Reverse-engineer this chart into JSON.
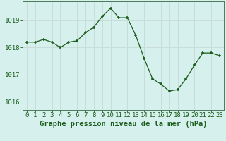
{
  "x": [
    0,
    1,
    2,
    3,
    4,
    5,
    6,
    7,
    8,
    9,
    10,
    11,
    12,
    13,
    14,
    15,
    16,
    17,
    18,
    19,
    20,
    21,
    22,
    23
  ],
  "y": [
    1018.2,
    1018.2,
    1018.3,
    1018.2,
    1018.0,
    1018.2,
    1018.25,
    1018.55,
    1018.75,
    1019.15,
    1019.45,
    1019.1,
    1019.1,
    1018.45,
    1017.6,
    1016.85,
    1016.65,
    1016.4,
    1016.45,
    1016.85,
    1017.35,
    1017.8,
    1017.8,
    1017.7
  ],
  "xlabel": "Graphe pression niveau de la mer (hPa)",
  "ylim": [
    1015.7,
    1019.7
  ],
  "yticks": [
    1016,
    1017,
    1018,
    1019
  ],
  "xticks": [
    0,
    1,
    2,
    3,
    4,
    5,
    6,
    7,
    8,
    9,
    10,
    11,
    12,
    13,
    14,
    15,
    16,
    17,
    18,
    19,
    20,
    21,
    22,
    23
  ],
  "line_color": "#1a5c1a",
  "marker_color": "#1a5c1a",
  "bg_color": "#d6f0ee",
  "grid_color": "#c8dcd8",
  "spine_color": "#4a7a5a",
  "label_color": "#1a5c1a",
  "xlabel_fontsize": 7.5,
  "tick_fontsize": 6.5
}
